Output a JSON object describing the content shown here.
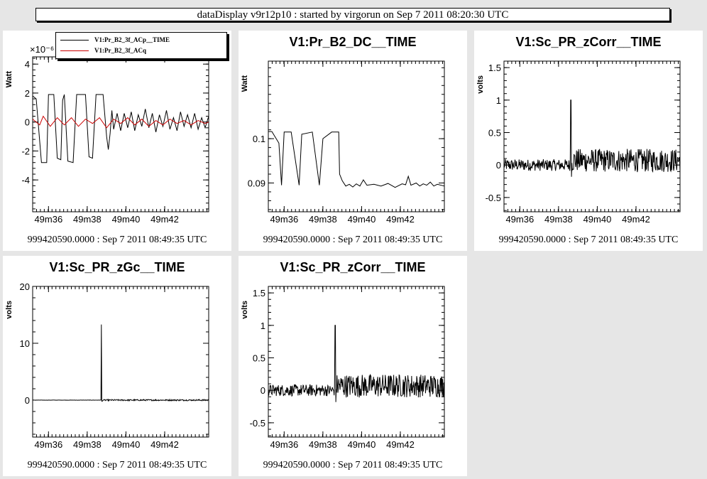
{
  "window_title": "dataDisplay v9r12p10 : started by virgorun on Sep  7 2011 08:20:30 UTC",
  "footer_text": "999420590.0000 : Sep  7 2011 08:49:35 UTC",
  "x_tick_labels": [
    "49m36",
    "49m38",
    "49m40",
    "49m42"
  ],
  "chart_data": [
    {
      "type": "line",
      "title": "",
      "ylabel": "Watt",
      "exponent_label": "×10⁻⁶",
      "ylim": [
        -6.2,
        4.5
      ],
      "yticks": [
        -4,
        -2,
        0,
        2,
        4
      ],
      "x_tick_labels": [
        "49m36",
        "49m38",
        "49m40",
        "49m42"
      ],
      "legend": "top",
      "series": [
        {
          "name": "V1:Pr_B2_3f_ACp__TIME",
          "color": "#000000",
          "points": [
            [
              0,
              1.8
            ],
            [
              0.02,
              1.6
            ],
            [
              0.05,
              -2.8
            ],
            [
              0.08,
              -2.8
            ],
            [
              0.09,
              1.9
            ],
            [
              0.12,
              1.9
            ],
            [
              0.14,
              -2.5
            ],
            [
              0.16,
              -2.6
            ],
            [
              0.17,
              1.5
            ],
            [
              0.18,
              1.9
            ],
            [
              0.2,
              -2.7
            ],
            [
              0.23,
              -2.8
            ],
            [
              0.25,
              1.9
            ],
            [
              0.3,
              1.9
            ],
            [
              0.32,
              -2.4
            ],
            [
              0.34,
              -2.5
            ],
            [
              0.36,
              1.9
            ],
            [
              0.4,
              1.9
            ],
            [
              0.42,
              -1.0
            ],
            [
              0.43,
              -1.9
            ],
            [
              0.44,
              -0.8
            ],
            [
              0.45,
              0.8
            ],
            [
              0.46,
              -0.5
            ],
            [
              0.48,
              0.6
            ],
            [
              0.5,
              -0.6
            ],
            [
              0.52,
              0.6
            ],
            [
              0.54,
              -0.4
            ],
            [
              0.56,
              0.7
            ],
            [
              0.58,
              -0.6
            ],
            [
              0.6,
              0.5
            ],
            [
              0.62,
              -0.3
            ],
            [
              0.64,
              0.9
            ],
            [
              0.66,
              -0.4
            ],
            [
              0.68,
              0.6
            ],
            [
              0.7,
              -0.7
            ],
            [
              0.72,
              0.5
            ],
            [
              0.74,
              -0.3
            ],
            [
              0.76,
              0.8
            ],
            [
              0.78,
              -0.5
            ],
            [
              0.8,
              0.3
            ],
            [
              0.82,
              -0.6
            ],
            [
              0.84,
              0.7
            ],
            [
              0.86,
              -0.3
            ],
            [
              0.88,
              0.5
            ],
            [
              0.9,
              -0.4
            ],
            [
              0.92,
              0.6
            ],
            [
              0.94,
              -0.5
            ],
            [
              0.96,
              0.3
            ],
            [
              0.98,
              -0.4
            ],
            [
              1,
              0.4
            ]
          ]
        },
        {
          "name": "V1:Pr_B2_3f_ACq",
          "color": "#cc0000",
          "points": [
            [
              0,
              0.2
            ],
            [
              0.04,
              -0.2
            ],
            [
              0.06,
              0.4
            ],
            [
              0.1,
              -0.3
            ],
            [
              0.14,
              0.3
            ],
            [
              0.18,
              -0.2
            ],
            [
              0.22,
              0.3
            ],
            [
              0.26,
              -0.3
            ],
            [
              0.3,
              0.2
            ],
            [
              0.34,
              -0.1
            ],
            [
              0.38,
              0.3
            ],
            [
              0.42,
              -0.4
            ],
            [
              0.46,
              0.2
            ],
            [
              0.5,
              -0.1
            ],
            [
              0.54,
              0.3
            ],
            [
              0.58,
              -0.2
            ],
            [
              0.62,
              0.2
            ],
            [
              0.66,
              -0.3
            ],
            [
              0.7,
              0.1
            ],
            [
              0.74,
              -0.2
            ],
            [
              0.78,
              0.2
            ],
            [
              0.82,
              -0.1
            ],
            [
              0.86,
              0.1
            ],
            [
              0.9,
              -0.2
            ],
            [
              0.94,
              0.1
            ],
            [
              0.98,
              -0.1
            ],
            [
              1,
              0
            ]
          ]
        }
      ]
    },
    {
      "type": "line",
      "title": "V1:Pr_B2_DC__TIME",
      "ylabel": "Watt",
      "ylim": [
        0.0835,
        0.1175
      ],
      "yticks": [
        0.09,
        0.1
      ],
      "ytick_labels": [
        "0.09",
        "0.1"
      ],
      "x_tick_labels": [
        "49m36",
        "49m38",
        "49m40",
        "49m42"
      ],
      "series": [
        {
          "name": "",
          "color": "#000000",
          "points": [
            [
              0,
              0.1016
            ],
            [
              0.02,
              0.1016
            ],
            [
              0.06,
              0.099
            ],
            [
              0.075,
              0.0895
            ],
            [
              0.09,
              0.1015
            ],
            [
              0.13,
              0.1015
            ],
            [
              0.175,
              0.0895
            ],
            [
              0.19,
              0.101
            ],
            [
              0.25,
              0.1015
            ],
            [
              0.29,
              0.0895
            ],
            [
              0.31,
              0.1
            ],
            [
              0.36,
              0.1015
            ],
            [
              0.4,
              0.1015
            ],
            [
              0.405,
              0.092
            ],
            [
              0.42,
              0.0905
            ],
            [
              0.44,
              0.0893
            ],
            [
              0.46,
              0.0897
            ],
            [
              0.48,
              0.0891
            ],
            [
              0.5,
              0.0898
            ],
            [
              0.52,
              0.0893
            ],
            [
              0.54,
              0.0907
            ],
            [
              0.56,
              0.0895
            ],
            [
              0.6,
              0.0897
            ],
            [
              0.64,
              0.0893
            ],
            [
              0.68,
              0.0899
            ],
            [
              0.72,
              0.089
            ],
            [
              0.76,
              0.0898
            ],
            [
              0.78,
              0.0896
            ],
            [
              0.795,
              0.0915
            ],
            [
              0.81,
              0.0895
            ],
            [
              0.84,
              0.09
            ],
            [
              0.86,
              0.0893
            ],
            [
              0.88,
              0.0898
            ],
            [
              0.9,
              0.0895
            ],
            [
              0.92,
              0.0902
            ],
            [
              0.94,
              0.0893
            ],
            [
              0.96,
              0.0897
            ],
            [
              1,
              0.0893
            ]
          ]
        }
      ]
    },
    {
      "type": "line",
      "title": "V1:Sc_PR_zCorr__TIME",
      "ylabel": "volts",
      "ylim": [
        -0.72,
        1.6
      ],
      "yticks": [
        -0.5,
        0,
        0.5,
        1,
        1.5
      ],
      "ytick_labels": [
        "-0.5",
        "0",
        "0.5",
        "1",
        "1.5"
      ],
      "x_tick_labels": [
        "49m36",
        "49m38",
        "49m40",
        "49m42"
      ],
      "noise": {
        "before": [
          0.0,
          0.09
        ],
        "after": [
          0.07,
          0.18
        ],
        "spike_at": 0.38,
        "spike_value": 1.0,
        "dip_value": -0.18
      },
      "series": [
        {
          "name": "",
          "color": "#000000"
        }
      ]
    },
    {
      "type": "line",
      "title": "V1:Sc_PR_zGc__TIME",
      "ylabel": "volts",
      "ylim": [
        -6.5,
        20
      ],
      "yticks": [
        0,
        10,
        20
      ],
      "ytick_labels": [
        "0",
        "10",
        "20"
      ],
      "x_tick_labels": [
        "49m36",
        "49m38",
        "49m40",
        "49m42"
      ],
      "noise": {
        "before": [
          0.0,
          0.02
        ],
        "after": [
          0.0,
          0.12
        ],
        "spike_at": 0.39,
        "spike_value": 13.3,
        "dip_value": -0.2
      },
      "series": [
        {
          "name": "",
          "color": "#000000"
        }
      ]
    },
    {
      "type": "line",
      "title": "V1:Sc_PR_zCorr__TIME",
      "ylabel": "volts",
      "ylim": [
        -0.72,
        1.6
      ],
      "yticks": [
        -0.5,
        0,
        0.5,
        1,
        1.5
      ],
      "ytick_labels": [
        "-0.5",
        "0",
        "0.5",
        "1",
        "1.5"
      ],
      "x_tick_labels": [
        "49m36",
        "49m38",
        "49m40",
        "49m42"
      ],
      "noise": {
        "before": [
          0.0,
          0.09
        ],
        "after": [
          0.07,
          0.18
        ],
        "spike_at": 0.38,
        "spike_value": 1.0,
        "dip_value": -0.18
      },
      "series": [
        {
          "name": "",
          "color": "#000000"
        }
      ]
    }
  ]
}
